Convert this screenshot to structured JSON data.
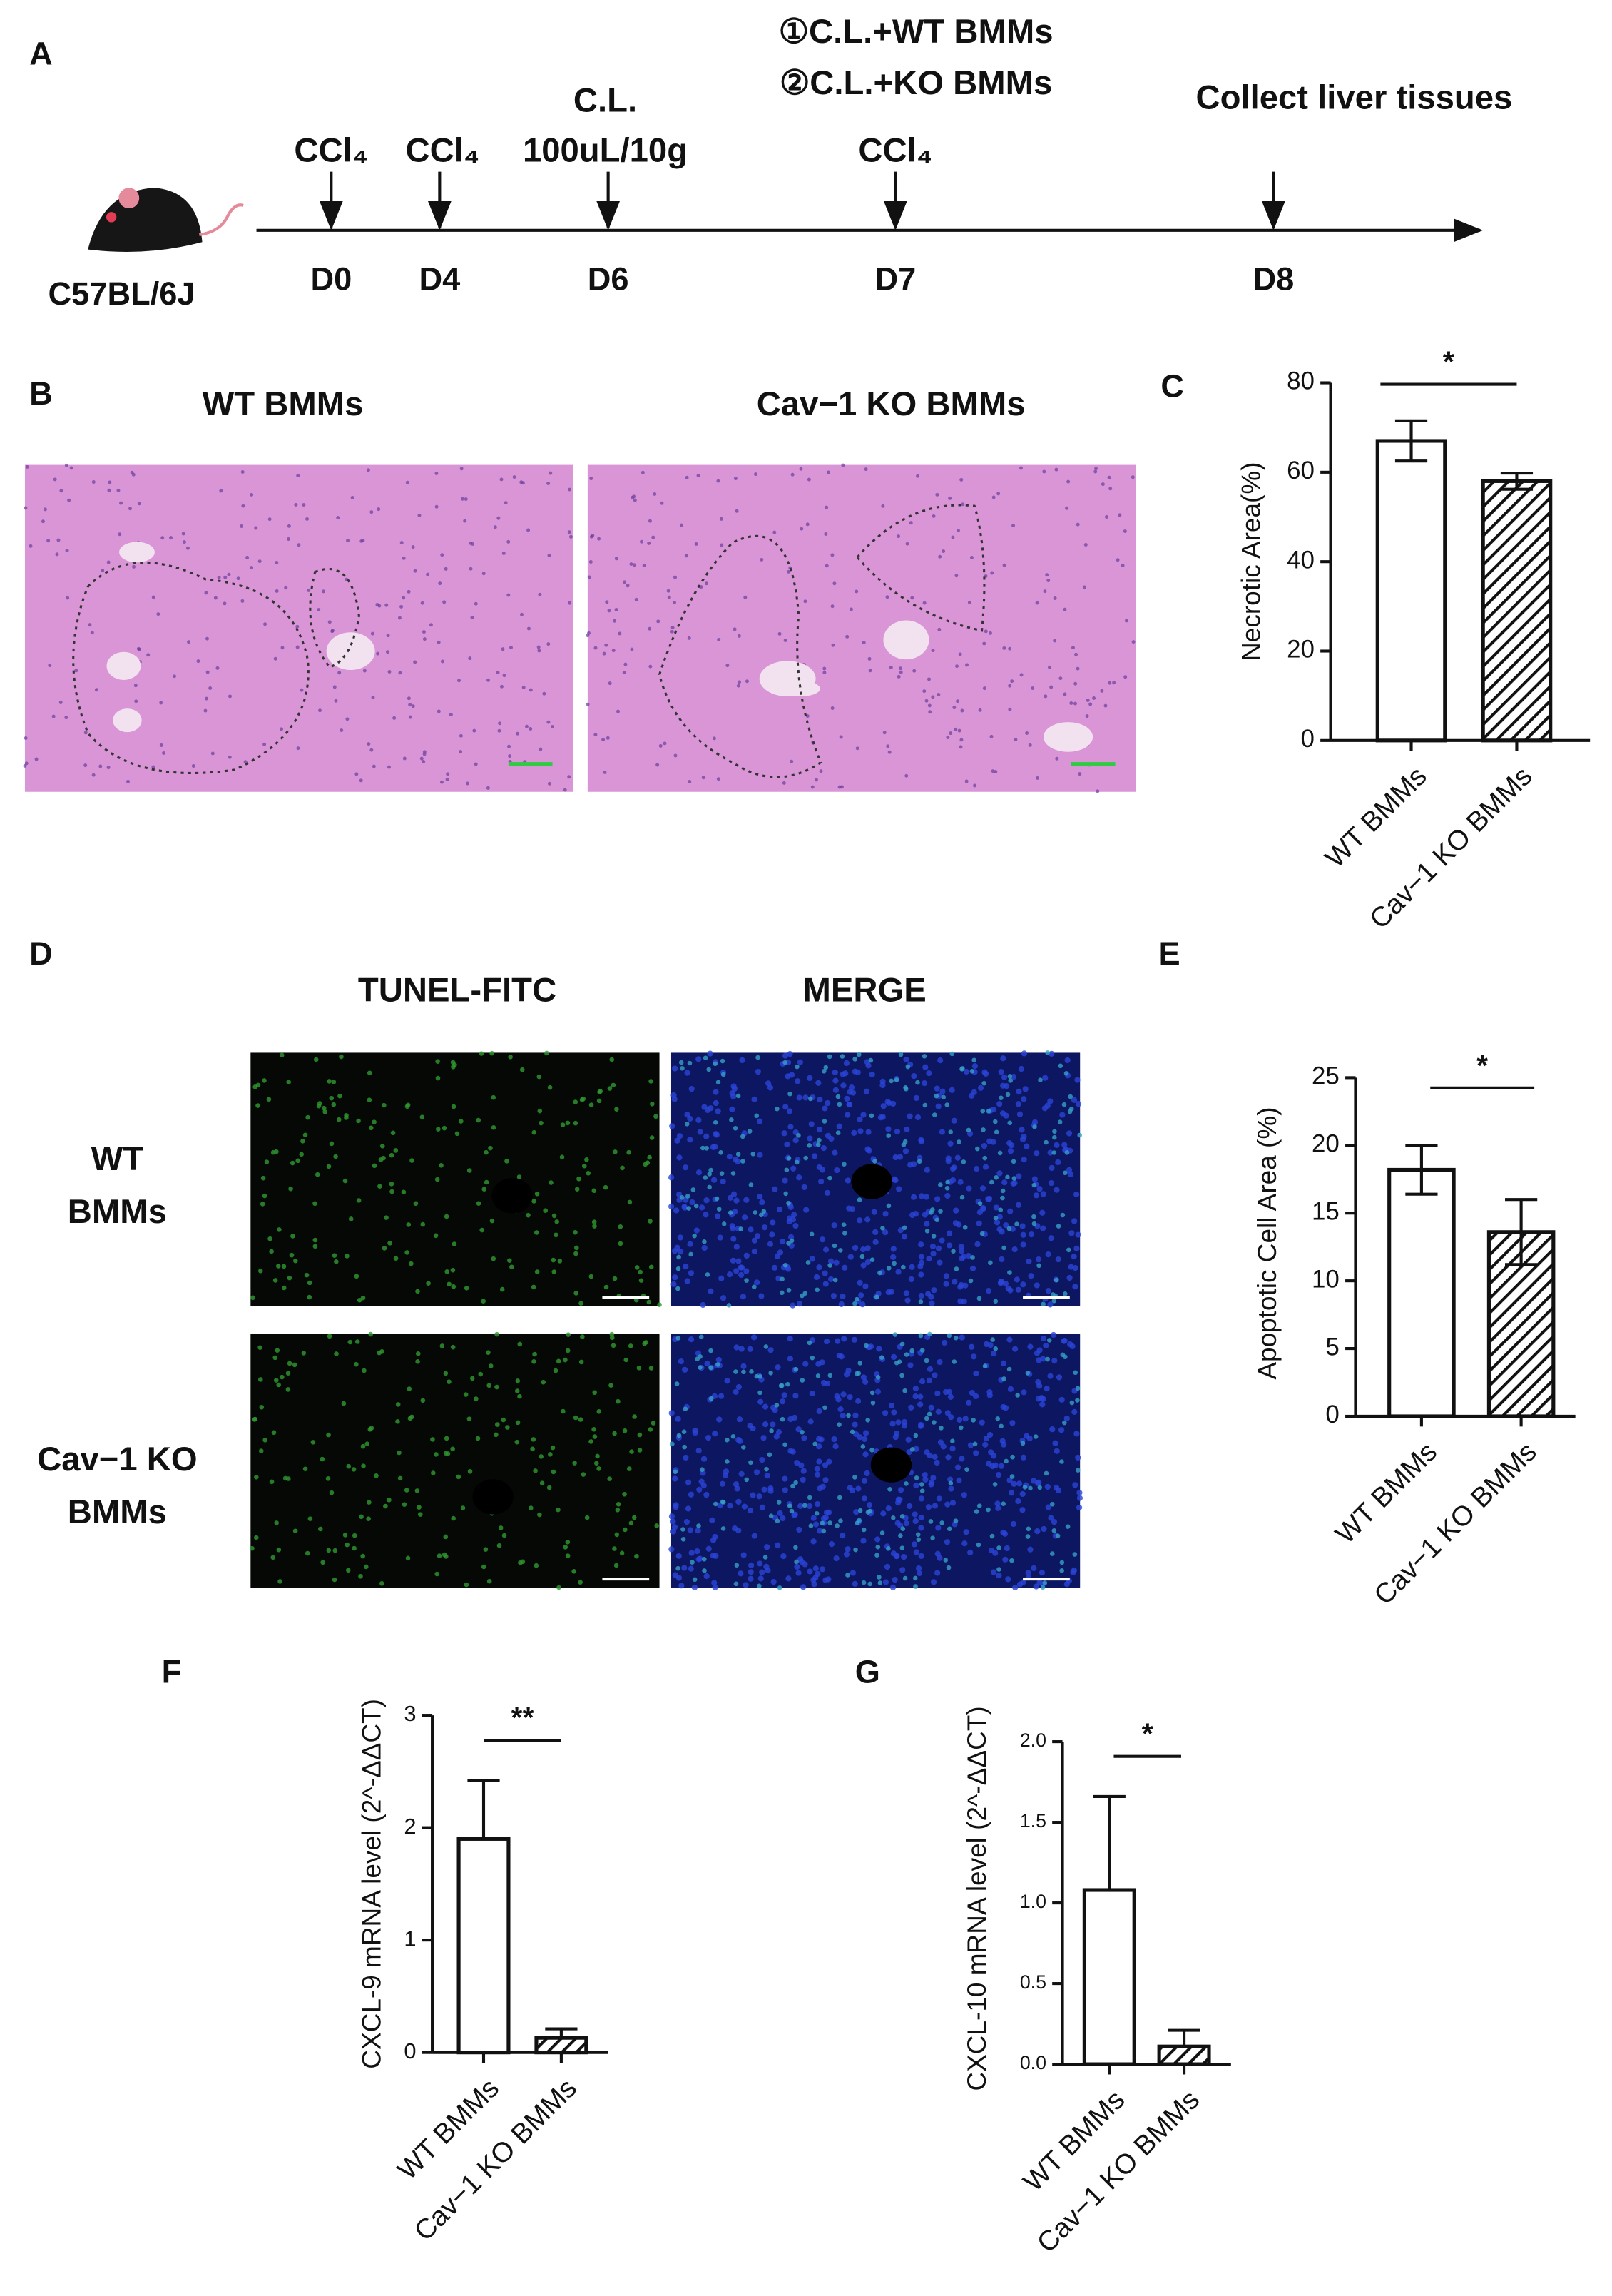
{
  "panels": {
    "timeline": {
      "label": "A",
      "mouse": "C57BL/6J",
      "events": [
        {
          "day": "D0",
          "labels": [
            "CCl₄"
          ]
        },
        {
          "day": "D4",
          "labels": [
            "CCl₄"
          ]
        },
        {
          "day": "D6",
          "labels": [
            "C.L.",
            "100uL/10g"
          ]
        },
        {
          "day": "D7",
          "labels": [
            "CCl₄"
          ]
        },
        {
          "day": "D8",
          "labels": [
            "Collect  liver tissues"
          ]
        }
      ],
      "treatments": [
        "①C.L.+WT BMMs",
        "②C.L.+KO BMMs"
      ]
    },
    "he_stain": {
      "label": "B",
      "titles": [
        "WT BMMs",
        "Cav−1 KO BMMs"
      ]
    },
    "tunel": {
      "label": "D",
      "columns": [
        "TUNEL-FITC",
        "MERGE"
      ],
      "rows": [
        [
          "WT",
          "BMMs"
        ],
        [
          "Cav−1 KO",
          "BMMs"
        ]
      ]
    }
  },
  "chart_data": [
    {
      "type": "bar",
      "label": "C",
      "y_label": "Necrotic Area(%)",
      "categories": [
        "WT BMMs",
        "Cav−1 KO BMMs"
      ],
      "values": [
        67,
        58
      ],
      "errors": [
        4.5,
        1.8
      ],
      "error_bars": "both",
      "bar_styles": [
        "open",
        "hatched"
      ],
      "ylim": [
        0,
        80
      ],
      "yticks": [
        0,
        20,
        40,
        60,
        80
      ],
      "significance": "*"
    },
    {
      "type": "bar",
      "label": "E",
      "y_label": "Apoptotic Cell Area (%)",
      "categories": [
        "WT BMMs",
        "Cav−1 KO BMMs"
      ],
      "values": [
        18.2,
        13.6
      ],
      "errors": [
        1.8,
        2.4
      ],
      "error_bars": "both",
      "bar_styles": [
        "open",
        "hatched"
      ],
      "ylim": [
        0,
        25
      ],
      "yticks": [
        0,
        5,
        10,
        15,
        20,
        25
      ],
      "significance": "*"
    },
    {
      "type": "bar",
      "label": "F",
      "y_label": "CXCL-9 mRNA level (2^-ΔΔCT)",
      "categories": [
        "WT BMMs",
        "Cav−1 KO BMMs"
      ],
      "values": [
        1.9,
        0.13
      ],
      "errors": [
        0.52,
        0.08
      ],
      "error_bars": "up",
      "bar_styles": [
        "open",
        "hatched"
      ],
      "ylim": [
        0,
        3
      ],
      "yticks": [
        0,
        1,
        2,
        3
      ],
      "significance": "**"
    },
    {
      "type": "bar",
      "label": "G",
      "y_label": "CXCL-10 mRNA level  (2^-ΔΔCT)",
      "categories": [
        "WT BMMs",
        "Cav−1 KO BMMs"
      ],
      "values": [
        1.08,
        0.11
      ],
      "errors": [
        0.58,
        0.1
      ],
      "error_bars": "up",
      "bar_styles": [
        "open",
        "hatched"
      ],
      "ylim": [
        0,
        2.0
      ],
      "yticks": [
        {
          "value": 0,
          "label": "0.0"
        },
        0.5,
        {
          "value": 1,
          "label": "1.0"
        },
        1.5,
        {
          "value": 2,
          "label": "2.0"
        }
      ],
      "significance": "*"
    }
  ]
}
